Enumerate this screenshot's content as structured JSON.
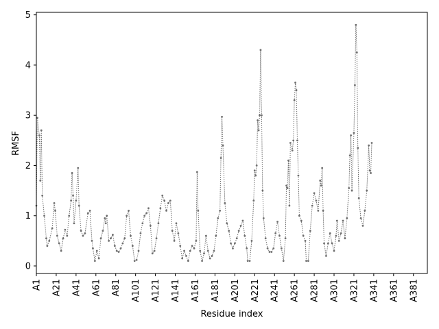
{
  "chart_data": {
    "type": "line",
    "title": "",
    "xlabel": "Residue index",
    "ylabel": "RMSF",
    "line_style": "dotted",
    "marker": "small dots",
    "color": "#6e6e6e",
    "grid": false,
    "ylim": [
      -0.15,
      5.05
    ],
    "yticks": [
      0,
      1,
      2,
      3,
      4,
      5
    ],
    "xlim": [
      1,
      395
    ],
    "xticks": [
      {
        "index": 1,
        "label": "A1"
      },
      {
        "index": 21,
        "label": "A21"
      },
      {
        "index": 41,
        "label": "A41"
      },
      {
        "index": 61,
        "label": "A61"
      },
      {
        "index": 81,
        "label": "A81"
      },
      {
        "index": 101,
        "label": "A101"
      },
      {
        "index": 121,
        "label": "A121"
      },
      {
        "index": 141,
        "label": "A141"
      },
      {
        "index": 161,
        "label": "A161"
      },
      {
        "index": 181,
        "label": "A181"
      },
      {
        "index": 201,
        "label": "A201"
      },
      {
        "index": 221,
        "label": "A221"
      },
      {
        "index": 241,
        "label": "A241"
      },
      {
        "index": 261,
        "label": "A261"
      },
      {
        "index": 281,
        "label": "A281"
      },
      {
        "index": 301,
        "label": "A301"
      },
      {
        "index": 321,
        "label": "A321"
      },
      {
        "index": 341,
        "label": "A341"
      },
      {
        "index": 361,
        "label": "A361"
      },
      {
        "index": 381,
        "label": "A381"
      }
    ],
    "anchors": [
      [
        1,
        1.2
      ],
      [
        2,
        2.95
      ],
      [
        4,
        2.6
      ],
      [
        5,
        1.7
      ],
      [
        6,
        2.7
      ],
      [
        7,
        1.4
      ],
      [
        9,
        1.0
      ],
      [
        11,
        0.55
      ],
      [
        12,
        0.4
      ],
      [
        14,
        0.5
      ],
      [
        17,
        0.75
      ],
      [
        19,
        1.25
      ],
      [
        20,
        1.1
      ],
      [
        22,
        0.6
      ],
      [
        24,
        0.45
      ],
      [
        26,
        0.3
      ],
      [
        28,
        0.55
      ],
      [
        30,
        0.72
      ],
      [
        32,
        0.6
      ],
      [
        34,
        1.0
      ],
      [
        36,
        1.3
      ],
      [
        37,
        1.85
      ],
      [
        38,
        1.4
      ],
      [
        39,
        0.85
      ],
      [
        41,
        1.3
      ],
      [
        43,
        1.95
      ],
      [
        44,
        1.2
      ],
      [
        46,
        0.7
      ],
      [
        48,
        0.6
      ],
      [
        50,
        0.65
      ],
      [
        53,
        1.05
      ],
      [
        55,
        1.1
      ],
      [
        57,
        0.5
      ],
      [
        58,
        0.35
      ],
      [
        60,
        0.1
      ],
      [
        62,
        0.3
      ],
      [
        64,
        0.15
      ],
      [
        66,
        0.55
      ],
      [
        68,
        0.7
      ],
      [
        70,
        0.95
      ],
      [
        71,
        0.85
      ],
      [
        72,
        1.0
      ],
      [
        74,
        0.5
      ],
      [
        76,
        0.55
      ],
      [
        78,
        0.62
      ],
      [
        80,
        0.4
      ],
      [
        82,
        0.3
      ],
      [
        84,
        0.28
      ],
      [
        86,
        0.35
      ],
      [
        88,
        0.45
      ],
      [
        90,
        0.55
      ],
      [
        92,
        1.0
      ],
      [
        94,
        1.1
      ],
      [
        96,
        0.6
      ],
      [
        98,
        0.4
      ],
      [
        100,
        0.1
      ],
      [
        102,
        0.12
      ],
      [
        104,
        0.3
      ],
      [
        106,
        0.65
      ],
      [
        108,
        0.85
      ],
      [
        110,
        1.0
      ],
      [
        112,
        1.05
      ],
      [
        114,
        1.15
      ],
      [
        116,
        0.8
      ],
      [
        118,
        0.25
      ],
      [
        120,
        0.3
      ],
      [
        122,
        0.55
      ],
      [
        124,
        0.85
      ],
      [
        126,
        1.15
      ],
      [
        128,
        1.4
      ],
      [
        130,
        1.3
      ],
      [
        132,
        1.1
      ],
      [
        134,
        1.25
      ],
      [
        136,
        1.3
      ],
      [
        138,
        0.7
      ],
      [
        140,
        0.5
      ],
      [
        142,
        0.85
      ],
      [
        144,
        0.65
      ],
      [
        146,
        0.4
      ],
      [
        148,
        0.15
      ],
      [
        150,
        0.3
      ],
      [
        152,
        0.2
      ],
      [
        154,
        0.1
      ],
      [
        156,
        0.3
      ],
      [
        158,
        0.4
      ],
      [
        160,
        0.35
      ],
      [
        162,
        0.5
      ],
      [
        163,
        1.87
      ],
      [
        164,
        1.1
      ],
      [
        166,
        0.3
      ],
      [
        168,
        0.1
      ],
      [
        170,
        0.25
      ],
      [
        172,
        0.6
      ],
      [
        174,
        0.3
      ],
      [
        176,
        0.15
      ],
      [
        178,
        0.2
      ],
      [
        180,
        0.3
      ],
      [
        182,
        0.6
      ],
      [
        184,
        0.95
      ],
      [
        186,
        1.1
      ],
      [
        187,
        2.15
      ],
      [
        188,
        2.97
      ],
      [
        189,
        2.4
      ],
      [
        191,
        1.25
      ],
      [
        193,
        0.85
      ],
      [
        195,
        0.7
      ],
      [
        197,
        0.45
      ],
      [
        199,
        0.35
      ],
      [
        201,
        0.45
      ],
      [
        203,
        0.55
      ],
      [
        205,
        0.7
      ],
      [
        207,
        0.8
      ],
      [
        209,
        0.9
      ],
      [
        211,
        0.6
      ],
      [
        213,
        0.35
      ],
      [
        214,
        0.1
      ],
      [
        216,
        0.1
      ],
      [
        218,
        0.5
      ],
      [
        220,
        1.3
      ],
      [
        221,
        1.9
      ],
      [
        222,
        1.8
      ],
      [
        223,
        2.0
      ],
      [
        224,
        2.9
      ],
      [
        225,
        2.7
      ],
      [
        226,
        3.0
      ],
      [
        227,
        4.3
      ],
      [
        228,
        3.0
      ],
      [
        229,
        1.5
      ],
      [
        230,
        0.95
      ],
      [
        232,
        0.55
      ],
      [
        234,
        0.35
      ],
      [
        236,
        0.28
      ],
      [
        238,
        0.28
      ],
      [
        240,
        0.35
      ],
      [
        242,
        0.65
      ],
      [
        244,
        0.88
      ],
      [
        246,
        0.6
      ],
      [
        248,
        0.35
      ],
      [
        250,
        0.1
      ],
      [
        252,
        0.55
      ],
      [
        253,
        1.6
      ],
      [
        254,
        1.55
      ],
      [
        255,
        2.1
      ],
      [
        256,
        1.2
      ],
      [
        257,
        2.45
      ],
      [
        259,
        2.3
      ],
      [
        260,
        2.5
      ],
      [
        261,
        3.3
      ],
      [
        262,
        3.65
      ],
      [
        263,
        3.5
      ],
      [
        264,
        2.5
      ],
      [
        265,
        1.8
      ],
      [
        266,
        1.0
      ],
      [
        268,
        0.9
      ],
      [
        270,
        0.6
      ],
      [
        272,
        0.5
      ],
      [
        273,
        0.1
      ],
      [
        275,
        0.1
      ],
      [
        277,
        0.7
      ],
      [
        279,
        1.2
      ],
      [
        281,
        1.45
      ],
      [
        283,
        1.3
      ],
      [
        285,
        1.1
      ],
      [
        287,
        1.7
      ],
      [
        288,
        1.6
      ],
      [
        289,
        1.95
      ],
      [
        290,
        1.1
      ],
      [
        291,
        0.45
      ],
      [
        293,
        0.2
      ],
      [
        295,
        0.45
      ],
      [
        297,
        0.65
      ],
      [
        299,
        0.45
      ],
      [
        301,
        0.3
      ],
      [
        303,
        0.6
      ],
      [
        304,
        0.9
      ],
      [
        306,
        0.5
      ],
      [
        308,
        0.65
      ],
      [
        310,
        0.9
      ],
      [
        312,
        0.55
      ],
      [
        314,
        0.95
      ],
      [
        316,
        1.55
      ],
      [
        317,
        2.2
      ],
      [
        318,
        2.6
      ],
      [
        319,
        1.5
      ],
      [
        321,
        2.65
      ],
      [
        322,
        3.6
      ],
      [
        323,
        4.8
      ],
      [
        324,
        4.25
      ],
      [
        325,
        2.35
      ],
      [
        326,
        1.35
      ],
      [
        328,
        0.95
      ],
      [
        330,
        0.8
      ],
      [
        332,
        1.1
      ],
      [
        334,
        1.5
      ],
      [
        336,
        2.4
      ],
      [
        337,
        1.9
      ],
      [
        338,
        1.85
      ],
      [
        339,
        2.45
      ]
    ]
  }
}
